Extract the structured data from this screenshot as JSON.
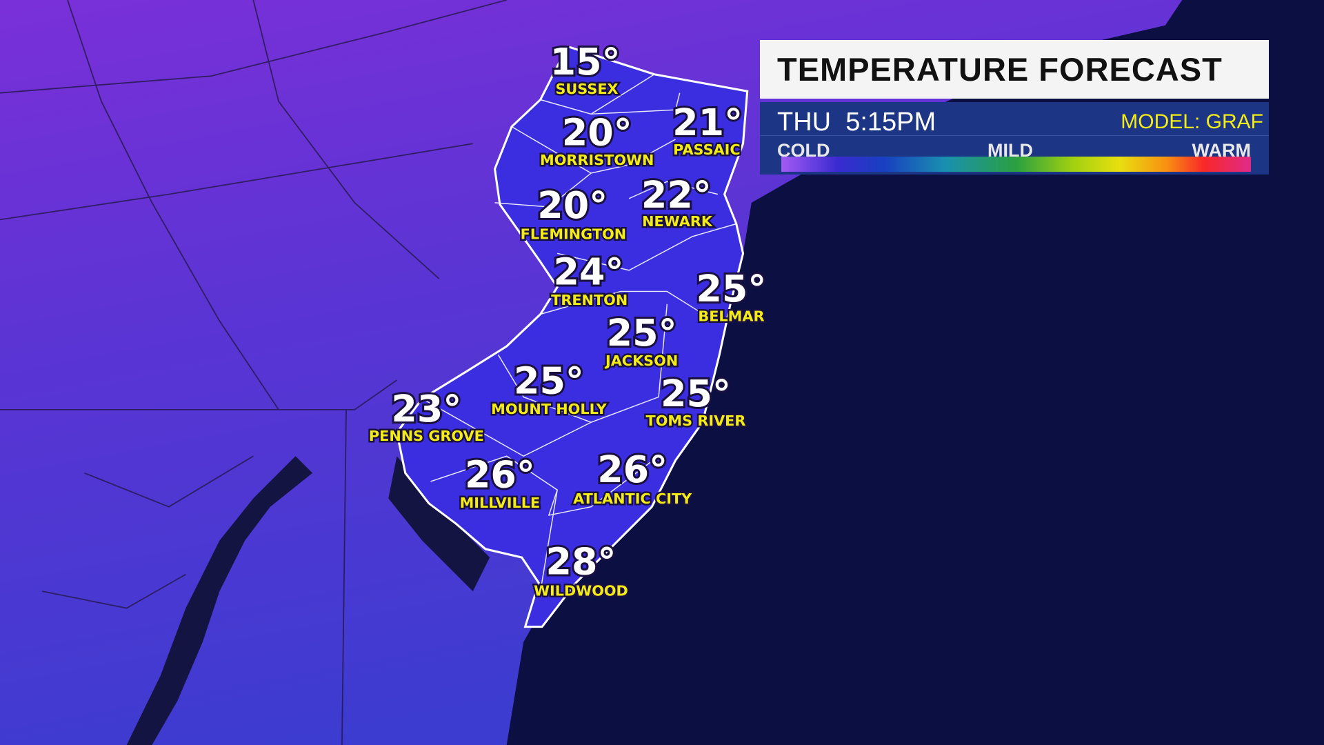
{
  "header": {
    "title": "TEMPERATURE FORECAST",
    "day_time": "THU  5:15PM",
    "model": "MODEL: GRAF"
  },
  "legend": {
    "cold": "COLD",
    "mild": "MILD",
    "warm": "WARM",
    "gradient_colors": [
      "#a35af5",
      "#3a2ad0",
      "#1840c0",
      "#1a90b0",
      "#2aa040",
      "#a0d010",
      "#e8e010",
      "#f89010",
      "#f82828",
      "#e02a88"
    ]
  },
  "colors": {
    "ocean": "#0c0f42",
    "land_north": "#7a30d8",
    "land_south": "#3c3cd0",
    "nj_fill": "#3a2ee0",
    "label_yellow": "#f4ec16"
  },
  "cities": [
    {
      "name": "SUSSEX",
      "temp": "15°"
    },
    {
      "name": "MORRISTOWN",
      "temp": "20°"
    },
    {
      "name": "PASSAIC",
      "temp": "21°"
    },
    {
      "name": "FLEMINGTON",
      "temp": "20°"
    },
    {
      "name": "NEWARK",
      "temp": "22°"
    },
    {
      "name": "TRENTON",
      "temp": "24°"
    },
    {
      "name": "BELMAR",
      "temp": "25°"
    },
    {
      "name": "JACKSON",
      "temp": "25°"
    },
    {
      "name": "MOUNT HOLLY",
      "temp": "25°"
    },
    {
      "name": "TOMS RIVER",
      "temp": "25°"
    },
    {
      "name": "PENNS GROVE",
      "temp": "23°"
    },
    {
      "name": "MILLVILLE",
      "temp": "26°"
    },
    {
      "name": "ATLANTIC CITY",
      "temp": "26°"
    },
    {
      "name": "WILDWOOD",
      "temp": "28°"
    }
  ]
}
